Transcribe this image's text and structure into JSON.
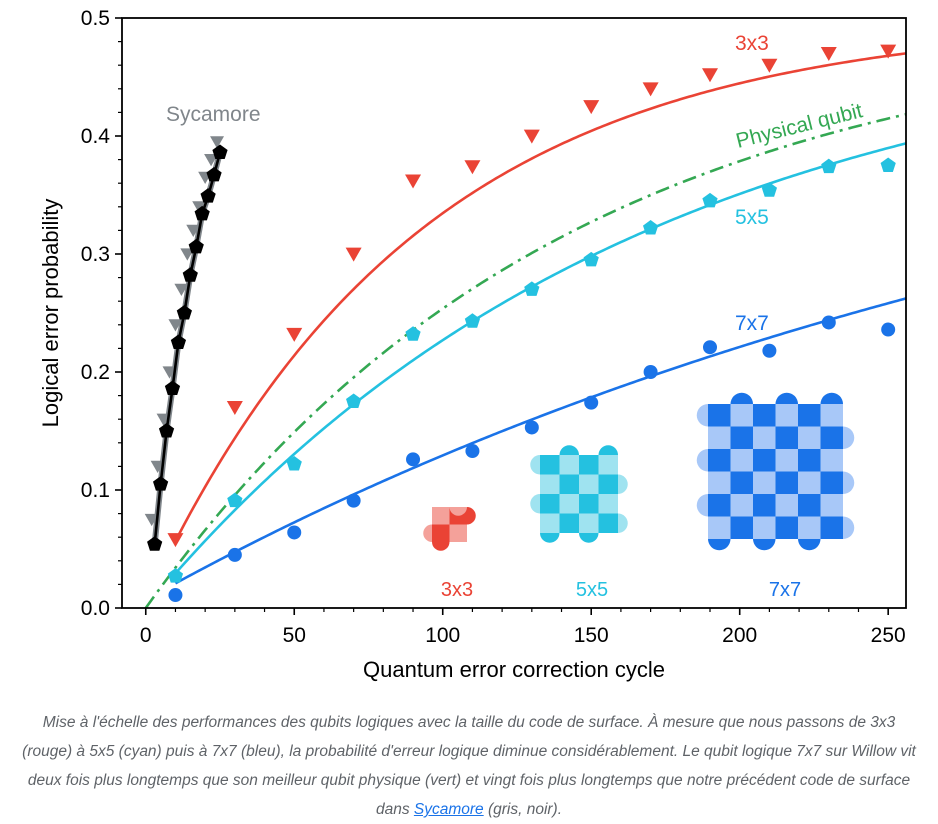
{
  "chart_data": {
    "type": "scatter",
    "xlabel": "Quantum error correction cycle",
    "ylabel": "Logical error probability",
    "xlim": [
      -8,
      256
    ],
    "ylim": [
      0,
      0.5
    ],
    "x_ticks": [
      "0",
      "50",
      "100",
      "150",
      "200",
      "250"
    ],
    "y_ticks": [
      "0.0",
      "0.1",
      "0.2",
      "0.3",
      "0.4",
      "0.5"
    ],
    "grid": false,
    "series": [
      {
        "name": "3x3",
        "color": "#ea4335",
        "marker": "triangle-down",
        "points": [
          [
            10,
            0.058
          ],
          [
            30,
            0.17
          ],
          [
            50,
            0.232
          ],
          [
            70,
            0.3
          ],
          [
            90,
            0.362
          ],
          [
            110,
            0.374
          ],
          [
            130,
            0.4
          ],
          [
            150,
            0.425
          ],
          [
            170,
            0.44
          ],
          [
            190,
            0.452
          ],
          [
            210,
            0.46
          ],
          [
            230,
            0.47
          ],
          [
            250,
            0.472
          ]
        ],
        "fit": {
          "asymptote": 0.5,
          "rate": 0.01095,
          "offset": 1
        }
      },
      {
        "name": "5x5",
        "color": "#24c1e0",
        "marker": "pentagon",
        "points": [
          [
            10,
            0.027
          ],
          [
            30,
            0.091
          ],
          [
            50,
            0.122
          ],
          [
            70,
            0.175
          ],
          [
            90,
            0.232
          ],
          [
            110,
            0.243
          ],
          [
            130,
            0.27
          ],
          [
            150,
            0.295
          ],
          [
            170,
            0.322
          ],
          [
            190,
            0.345
          ],
          [
            210,
            0.354
          ],
          [
            230,
            0.374
          ],
          [
            250,
            0.375
          ]
        ],
        "fit": {
          "asymptote": 0.5,
          "rate": 0.00605,
          "offset": 0
        }
      },
      {
        "name": "7x7",
        "color": "#1a73e8",
        "marker": "circle",
        "points": [
          [
            10,
            0.011
          ],
          [
            30,
            0.045
          ],
          [
            50,
            0.064
          ],
          [
            70,
            0.091
          ],
          [
            90,
            0.126
          ],
          [
            110,
            0.133
          ],
          [
            130,
            0.153
          ],
          [
            150,
            0.174
          ],
          [
            170,
            0.2
          ],
          [
            190,
            0.221
          ],
          [
            210,
            0.218
          ],
          [
            230,
            0.242
          ],
          [
            250,
            0.236
          ]
        ],
        "fit": {
          "asymptote": 0.5,
          "rate": 0.00285,
          "offset": 5
        }
      },
      {
        "name": "Physical qubit",
        "color": "#34a853",
        "line_style": "dash-dot",
        "fit": {
          "asymptote": 0.5,
          "rate": 0.00708,
          "offset": 0
        }
      },
      {
        "name": "Sycamore",
        "label_color": "#80868b",
        "color": "#000000",
        "marker": "pentagon",
        "secondary_color": "#80868b",
        "secondary_marker": "triangle-down",
        "points": [
          [
            3,
            0.054
          ],
          [
            5,
            0.105
          ],
          [
            7,
            0.15
          ],
          [
            9,
            0.186
          ],
          [
            11,
            0.225
          ],
          [
            13,
            0.25
          ],
          [
            15,
            0.282
          ],
          [
            17,
            0.306
          ],
          [
            19,
            0.334
          ],
          [
            21,
            0.349
          ],
          [
            23,
            0.367
          ],
          [
            25,
            0.386
          ]
        ],
        "secondary_points": [
          [
            2,
            0.075
          ],
          [
            4,
            0.12
          ],
          [
            6,
            0.16
          ],
          [
            8,
            0.2
          ],
          [
            10,
            0.24
          ],
          [
            12,
            0.27
          ],
          [
            14,
            0.3
          ],
          [
            16,
            0.32
          ],
          [
            18,
            0.34
          ],
          [
            20,
            0.365
          ],
          [
            22,
            0.38
          ],
          [
            24,
            0.395
          ]
        ]
      }
    ],
    "insets": [
      {
        "label": "3x3",
        "color": "#ea4335",
        "light": "#f4a19a",
        "n": 3
      },
      {
        "label": "5x5",
        "color": "#24c1e0",
        "light": "#9fe3f0",
        "n": 5
      },
      {
        "label": "7x7",
        "color": "#1a73e8",
        "light": "#a8c8f8",
        "n": 7
      }
    ]
  },
  "caption": {
    "text_before": "Mise à l'échelle des performances des qubits logiques avec la taille du code de surface. À mesure que nous passons de 3x3 (rouge) à 5x5 (cyan) puis à 7x7 (bleu), la probabilité d'erreur logique diminue considérablement. Le qubit logique 7x7 sur Willow vit deux fois plus longtemps que son meilleur qubit physique (vert) et vingt fois plus longtemps que notre précédent code de surface dans ",
    "link_text": "Sycamore",
    "text_after": " (gris, noir)."
  }
}
